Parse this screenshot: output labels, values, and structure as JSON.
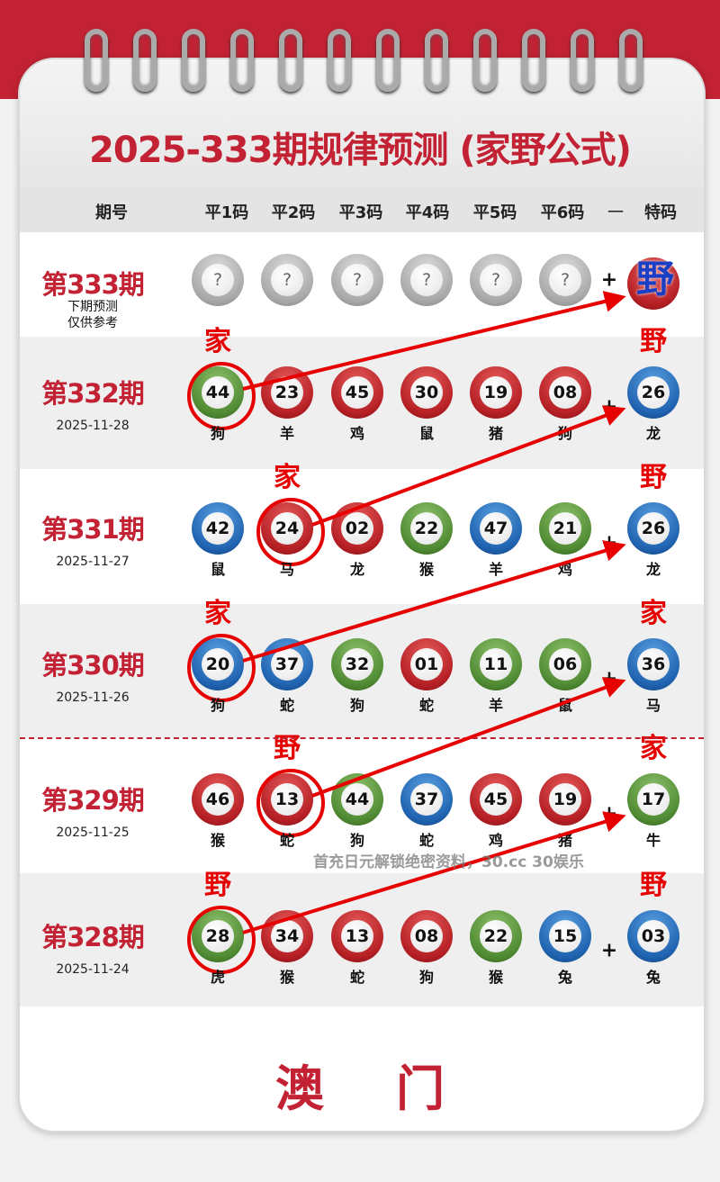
{
  "title": "2025-333期规律预测 (家野公式)",
  "header": {
    "period": "期号",
    "cols": [
      "平1码",
      "平2码",
      "平3码",
      "平4码",
      "平5码",
      "平6码"
    ],
    "sep": "一",
    "special": "特码"
  },
  "next": {
    "label": "第333期",
    "note1": "下期预测",
    "note2": "仅供参考",
    "placeholder": "?",
    "plus": "+",
    "special_text": "野"
  },
  "rows": [
    {
      "label": "第332期",
      "date": "2025-11-28",
      "balls": [
        {
          "n": "44",
          "z": "狗",
          "c": "green"
        },
        {
          "n": "23",
          "z": "羊",
          "c": "red"
        },
        {
          "n": "45",
          "z": "鸡",
          "c": "red"
        },
        {
          "n": "30",
          "z": "鼠",
          "c": "red"
        },
        {
          "n": "19",
          "z": "猪",
          "c": "red"
        },
        {
          "n": "08",
          "z": "狗",
          "c": "red"
        }
      ],
      "special": {
        "n": "26",
        "z": "龙",
        "c": "blue"
      },
      "hl": 0,
      "hl_mark": "家",
      "special_mark": "野"
    },
    {
      "label": "第331期",
      "date": "2025-11-27",
      "balls": [
        {
          "n": "42",
          "z": "鼠",
          "c": "blue"
        },
        {
          "n": "24",
          "z": "马",
          "c": "red"
        },
        {
          "n": "02",
          "z": "龙",
          "c": "red"
        },
        {
          "n": "22",
          "z": "猴",
          "c": "green"
        },
        {
          "n": "47",
          "z": "羊",
          "c": "blue"
        },
        {
          "n": "21",
          "z": "鸡",
          "c": "green"
        }
      ],
      "special": {
        "n": "26",
        "z": "龙",
        "c": "blue"
      },
      "hl": 1,
      "hl_mark": "家",
      "special_mark": "野"
    },
    {
      "label": "第330期",
      "date": "2025-11-26",
      "balls": [
        {
          "n": "20",
          "z": "狗",
          "c": "blue"
        },
        {
          "n": "37",
          "z": "蛇",
          "c": "blue"
        },
        {
          "n": "32",
          "z": "狗",
          "c": "green"
        },
        {
          "n": "01",
          "z": "蛇",
          "c": "red"
        },
        {
          "n": "11",
          "z": "羊",
          "c": "green"
        },
        {
          "n": "06",
          "z": "鼠",
          "c": "green"
        }
      ],
      "special": {
        "n": "36",
        "z": "马",
        "c": "blue"
      },
      "hl": 0,
      "hl_mark": "家",
      "special_mark": "家"
    },
    {
      "label": "第329期",
      "date": "2025-11-25",
      "balls": [
        {
          "n": "46",
          "z": "猴",
          "c": "red"
        },
        {
          "n": "13",
          "z": "蛇",
          "c": "red"
        },
        {
          "n": "44",
          "z": "狗",
          "c": "green"
        },
        {
          "n": "37",
          "z": "蛇",
          "c": "blue"
        },
        {
          "n": "45",
          "z": "鸡",
          "c": "red"
        },
        {
          "n": "19",
          "z": "猪",
          "c": "red"
        }
      ],
      "special": {
        "n": "17",
        "z": "牛",
        "c": "green"
      },
      "hl": 1,
      "hl_mark": "野",
      "special_mark": "家"
    },
    {
      "label": "第328期",
      "date": "2025-11-24",
      "balls": [
        {
          "n": "28",
          "z": "虎",
          "c": "green"
        },
        {
          "n": "34",
          "z": "猴",
          "c": "red"
        },
        {
          "n": "13",
          "z": "蛇",
          "c": "red"
        },
        {
          "n": "08",
          "z": "狗",
          "c": "red"
        },
        {
          "n": "22",
          "z": "猴",
          "c": "green"
        },
        {
          "n": "15",
          "z": "兔",
          "c": "blue"
        }
      ],
      "special": {
        "n": "03",
        "z": "兔",
        "c": "blue"
      },
      "hl": 0,
      "hl_mark": "野",
      "special_mark": "野"
    }
  ],
  "ad_text": "首充日元解锁绝密资料，30.cc 30娱乐",
  "footer": "澳门",
  "colors": {
    "brand": "#c22233",
    "red": "#b51f24",
    "green": "#4f8a32",
    "blue": "#1f62b0",
    "arrow": "#e60000"
  }
}
